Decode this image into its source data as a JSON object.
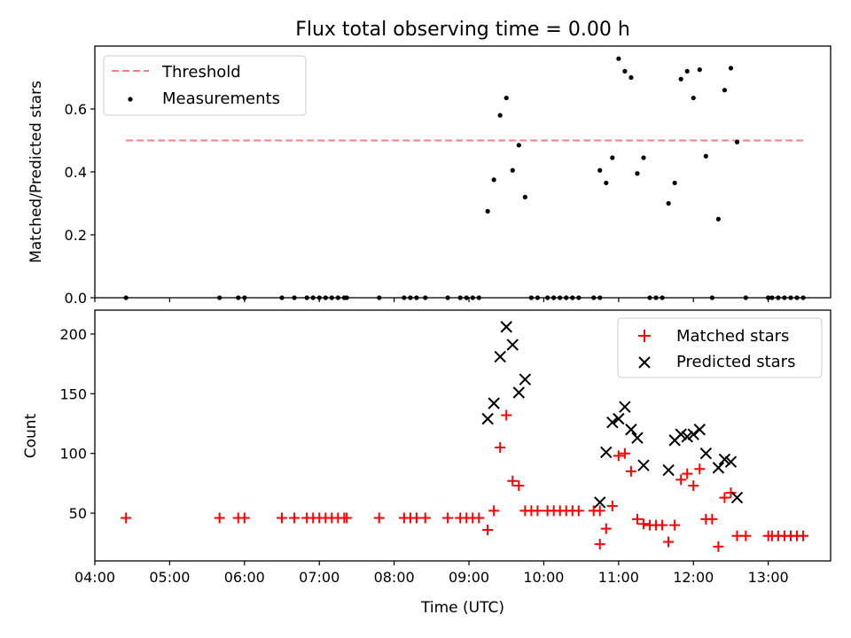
{
  "title": "Flux total observing time = 0.00 h",
  "chart_data": [
    {
      "type": "scatter",
      "ylabel": "Matched/Predicted stars",
      "xlabel": "",
      "xlim": [
        "04:00",
        "13:50"
      ],
      "ylim": [
        0,
        0.8
      ],
      "yticks": [
        0.0,
        0.2,
        0.4,
        0.6
      ],
      "ytick_labels": [
        "0.0",
        "0.2",
        "0.4",
        "0.6"
      ],
      "grid": false,
      "legend_position": "top-left",
      "threshold": {
        "name": "Threshold",
        "value": 0.5,
        "x": [
          "04:25",
          "13:28"
        ],
        "color": "#ff7f7f",
        "style": "dashed"
      },
      "series": [
        {
          "name": "Measurements",
          "color": "#000000",
          "marker": "dot",
          "points": [
            [
              "04:25",
              0
            ],
            [
              "05:40",
              0
            ],
            [
              "05:55",
              0
            ],
            [
              "06:00",
              0
            ],
            [
              "06:30",
              0
            ],
            [
              "06:40",
              0
            ],
            [
              "06:50",
              0
            ],
            [
              "06:55",
              0
            ],
            [
              "07:00",
              0
            ],
            [
              "07:05",
              0
            ],
            [
              "07:10",
              0
            ],
            [
              "07:15",
              0
            ],
            [
              "07:20",
              0
            ],
            [
              "07:22",
              0
            ],
            [
              "07:48",
              0
            ],
            [
              "08:08",
              0
            ],
            [
              "08:13",
              0
            ],
            [
              "08:18",
              0
            ],
            [
              "08:25",
              0
            ],
            [
              "08:43",
              0
            ],
            [
              "08:53",
              0
            ],
            [
              "08:58",
              0
            ],
            [
              "09:03",
              0
            ],
            [
              "09:08",
              0
            ],
            [
              "09:15",
              0.275
            ],
            [
              "09:20",
              0.375
            ],
            [
              "09:25",
              0.58
            ],
            [
              "09:30",
              0.635
            ],
            [
              "09:35",
              0.405
            ],
            [
              "09:40",
              0.485
            ],
            [
              "09:45",
              0.32
            ],
            [
              "09:50",
              0
            ],
            [
              "09:55",
              0
            ],
            [
              "10:03",
              0
            ],
            [
              "10:08",
              0
            ],
            [
              "10:13",
              0
            ],
            [
              "10:18",
              0
            ],
            [
              "10:23",
              0
            ],
            [
              "10:28",
              0
            ],
            [
              "10:40",
              0
            ],
            [
              "10:45",
              0
            ],
            [
              "10:45",
              0.405
            ],
            [
              "10:50",
              0.365
            ],
            [
              "10:55",
              0.445
            ],
            [
              "11:00",
              0.76
            ],
            [
              "11:05",
              0.72
            ],
            [
              "11:10",
              0.7
            ],
            [
              "11:15",
              0.395
            ],
            [
              "11:20",
              0.445
            ],
            [
              "11:25",
              0
            ],
            [
              "11:30",
              0
            ],
            [
              "11:35",
              0
            ],
            [
              "11:40",
              0.3
            ],
            [
              "11:45",
              0.365
            ],
            [
              "11:50",
              0.695
            ],
            [
              "11:55",
              0.72
            ],
            [
              "12:00",
              0.635
            ],
            [
              "12:05",
              0.725
            ],
            [
              "12:10",
              0.45
            ],
            [
              "12:15",
              0
            ],
            [
              "12:20",
              0.25
            ],
            [
              "12:25",
              0.66
            ],
            [
              "12:30",
              0.73
            ],
            [
              "12:35",
              0.495
            ],
            [
              "12:42",
              0
            ],
            [
              "13:00",
              0
            ],
            [
              "13:03",
              0
            ],
            [
              "13:08",
              0
            ],
            [
              "13:13",
              0
            ],
            [
              "13:18",
              0
            ],
            [
              "13:23",
              0
            ],
            [
              "13:28",
              0
            ]
          ]
        }
      ]
    },
    {
      "type": "scatter",
      "ylabel": "Count",
      "xlabel": "Time (UTC)",
      "xlim": [
        "04:00",
        "13:50"
      ],
      "ylim": [
        10,
        220
      ],
      "yticks": [
        50,
        100,
        150,
        200
      ],
      "ytick_labels": [
        "50",
        "100",
        "150",
        "200"
      ],
      "xticks": [
        "04:00",
        "05:00",
        "06:00",
        "07:00",
        "08:00",
        "09:00",
        "10:00",
        "11:00",
        "12:00",
        "13:00"
      ],
      "grid": false,
      "legend_position": "top-right",
      "series": [
        {
          "name": "Matched stars",
          "color": "#ff0000",
          "marker": "plus",
          "points": [
            [
              "04:25",
              46
            ],
            [
              "05:40",
              46
            ],
            [
              "05:55",
              46
            ],
            [
              "06:00",
              46
            ],
            [
              "06:30",
              46
            ],
            [
              "06:40",
              46
            ],
            [
              "06:50",
              46
            ],
            [
              "06:55",
              46
            ],
            [
              "07:00",
              46
            ],
            [
              "07:05",
              46
            ],
            [
              "07:10",
              46
            ],
            [
              "07:15",
              46
            ],
            [
              "07:20",
              46
            ],
            [
              "07:22",
              46
            ],
            [
              "07:48",
              46
            ],
            [
              "08:08",
              46
            ],
            [
              "08:13",
              46
            ],
            [
              "08:18",
              46
            ],
            [
              "08:25",
              46
            ],
            [
              "08:43",
              46
            ],
            [
              "08:53",
              46
            ],
            [
              "08:58",
              46
            ],
            [
              "09:03",
              46
            ],
            [
              "09:08",
              46
            ],
            [
              "09:15",
              36
            ],
            [
              "09:20",
              52
            ],
            [
              "09:25",
              105
            ],
            [
              "09:30",
              132
            ],
            [
              "09:35",
              77
            ],
            [
              "09:40",
              73
            ],
            [
              "09:45",
              52
            ],
            [
              "09:50",
              52
            ],
            [
              "09:55",
              52
            ],
            [
              "10:03",
              52
            ],
            [
              "10:08",
              52
            ],
            [
              "10:13",
              52
            ],
            [
              "10:18",
              52
            ],
            [
              "10:23",
              52
            ],
            [
              "10:28",
              52
            ],
            [
              "10:40",
              52
            ],
            [
              "10:45",
              52
            ],
            [
              "10:45",
              24
            ],
            [
              "10:50",
              37
            ],
            [
              "10:55",
              56
            ],
            [
              "11:00",
              98
            ],
            [
              "11:05",
              100
            ],
            [
              "11:10",
              85
            ],
            [
              "11:15",
              45
            ],
            [
              "11:20",
              41
            ],
            [
              "11:25",
              40
            ],
            [
              "11:30",
              40
            ],
            [
              "11:35",
              40
            ],
            [
              "11:40",
              26
            ],
            [
              "11:45",
              40
            ],
            [
              "11:50",
              78
            ],
            [
              "11:55",
              83
            ],
            [
              "12:00",
              73
            ],
            [
              "12:05",
              87
            ],
            [
              "12:10",
              45
            ],
            [
              "12:15",
              45
            ],
            [
              "12:20",
              22
            ],
            [
              "12:25",
              63
            ],
            [
              "12:30",
              67
            ],
            [
              "12:35",
              31
            ],
            [
              "12:42",
              31
            ],
            [
              "13:00",
              31
            ],
            [
              "13:03",
              31
            ],
            [
              "13:08",
              31
            ],
            [
              "13:13",
              31
            ],
            [
              "13:18",
              31
            ],
            [
              "13:23",
              31
            ],
            [
              "13:28",
              31
            ]
          ]
        },
        {
          "name": "Predicted stars",
          "color": "#000000",
          "marker": "x",
          "points": [
            [
              "09:15",
              129
            ],
            [
              "09:20",
              142
            ],
            [
              "09:25",
              181
            ],
            [
              "09:30",
              206
            ],
            [
              "09:35",
              191
            ],
            [
              "09:40",
              151
            ],
            [
              "09:45",
              162
            ],
            [
              "10:45",
              59
            ],
            [
              "10:50",
              101
            ],
            [
              "10:55",
              126
            ],
            [
              "11:00",
              129
            ],
            [
              "11:05",
              139
            ],
            [
              "11:10",
              120
            ],
            [
              "11:15",
              113
            ],
            [
              "11:20",
              90
            ],
            [
              "11:40",
              86
            ],
            [
              "11:45",
              111
            ],
            [
              "11:50",
              116
            ],
            [
              "11:55",
              114
            ],
            [
              "12:00",
              116
            ],
            [
              "12:05",
              120
            ],
            [
              "12:10",
              100
            ],
            [
              "12:20",
              88
            ],
            [
              "12:25",
              95
            ],
            [
              "12:30",
              93
            ],
            [
              "12:35",
              63
            ]
          ]
        }
      ]
    }
  ]
}
